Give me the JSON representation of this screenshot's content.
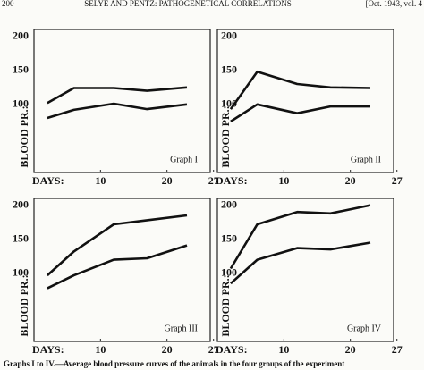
{
  "header": {
    "page_number": "200",
    "running_title": "SELYE AND PENTZ: PATHOGENETICAL CORRELATIONS",
    "issue": "[Oct. 1943, vol. 4"
  },
  "caption": "Graphs I to IV.—Average blood pressure curves of the animals in the four groups of the experiment",
  "chart_data": [
    {
      "type": "line",
      "title": "Graph I",
      "ylabel": "BLOOD PR.:",
      "xlabel": "DAYS:",
      "x": [
        2,
        6,
        12,
        17,
        23
      ],
      "xlim": [
        0,
        26.5
      ],
      "xticks": [
        10,
        20,
        27
      ],
      "ylim": [
        0,
        210
      ],
      "yticks": [
        100,
        150,
        200
      ],
      "grid": false,
      "series": [
        {
          "color": "#111111",
          "values": [
            102,
            124,
            124,
            120,
            125
          ]
        },
        {
          "color": "#111111",
          "values": [
            80,
            92,
            101,
            93,
            100
          ]
        }
      ]
    },
    {
      "type": "line",
      "title": "Graph II",
      "ylabel": "BLOOD PR.:",
      "xlabel": "DAYS:",
      "x": [
        2,
        6,
        12,
        17,
        23
      ],
      "xlim": [
        0,
        26.5
      ],
      "xticks": [
        10,
        20,
        27
      ],
      "ylim": [
        0,
        210
      ],
      "yticks": [
        100,
        150,
        200
      ],
      "grid": false,
      "series": [
        {
          "color": "#111111",
          "values": [
            93,
            148,
            130,
            125,
            124
          ]
        },
        {
          "color": "#111111",
          "values": [
            75,
            100,
            87,
            97,
            97
          ]
        }
      ]
    },
    {
      "type": "line",
      "title": "Graph III",
      "ylabel": "BLOOD PR.:",
      "xlabel": "DAYS:",
      "x": [
        2,
        6,
        12,
        17,
        23
      ],
      "xlim": [
        0,
        26.5
      ],
      "xticks": [
        10,
        20,
        27
      ],
      "ylim": [
        0,
        210
      ],
      "yticks": [
        100,
        150,
        200
      ],
      "grid": false,
      "series": [
        {
          "color": "#111111",
          "values": [
            97,
            132,
            172,
            178,
            185
          ]
        },
        {
          "color": "#111111",
          "values": [
            78,
            97,
            120,
            122,
            141
          ]
        }
      ]
    },
    {
      "type": "line",
      "title": "Graph IV",
      "ylabel": "BLOOD PR.:",
      "xlabel": "DAYS:",
      "x": [
        2,
        6,
        12,
        17,
        23
      ],
      "xlim": [
        0,
        26.5
      ],
      "xticks": [
        10,
        20,
        27
      ],
      "ylim": [
        0,
        210
      ],
      "yticks": [
        100,
        150,
        200
      ],
      "grid": false,
      "series": [
        {
          "color": "#111111",
          "values": [
            107,
            172,
            190,
            188,
            200
          ]
        },
        {
          "color": "#111111",
          "values": [
            85,
            120,
            137,
            135,
            145
          ]
        }
      ]
    }
  ]
}
